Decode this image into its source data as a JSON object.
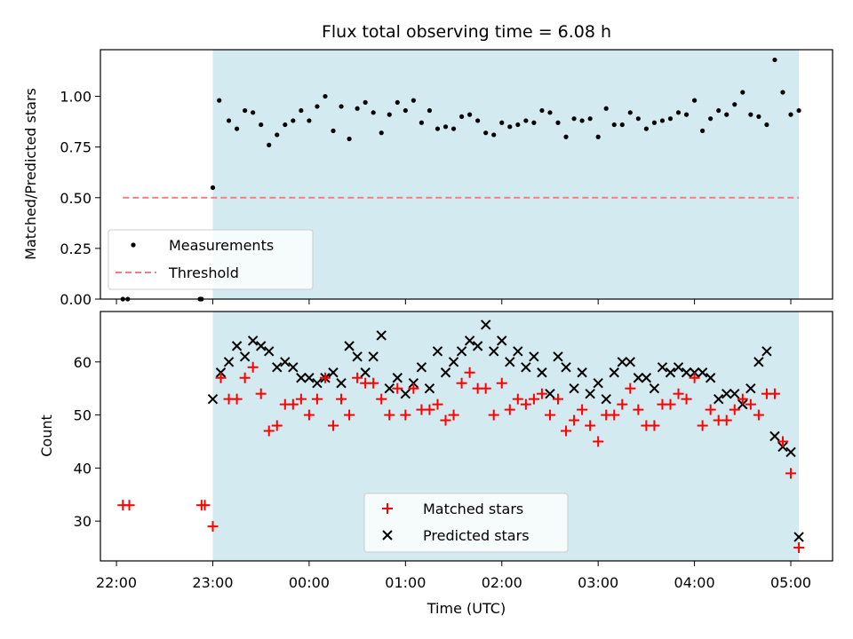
{
  "chart_data": [
    {
      "type": "scatter",
      "title": "Flux total observing time = 6.08 h",
      "xlabel": "",
      "ylabel": "Matched/Predicted stars",
      "ylim": [
        0,
        1.23
      ],
      "xlim": [
        "21:50",
        "05:26"
      ],
      "yticks": [
        "0.00",
        "0.25",
        "0.50",
        "0.75",
        "1.00"
      ],
      "ytick_values": [
        0,
        0.25,
        0.5,
        0.75,
        1.0
      ],
      "shaded_region": {
        "start": "23:00",
        "end": "05:05",
        "color": "#d3eaf1"
      },
      "threshold": {
        "name": "Threshold",
        "value": 0.5,
        "start": "22:04",
        "end": "05:05",
        "color": "#f08080"
      },
      "legend": {
        "position": "lower-left",
        "entries": [
          "Measurements",
          "Threshold"
        ]
      },
      "series": [
        {
          "name": "Measurements",
          "color": "#000000",
          "x": [
            "22:04",
            "22:07",
            "22:52",
            "22:53",
            "23:00",
            "23:04",
            "23:10",
            "23:15",
            "23:20",
            "23:25",
            "23:30",
            "23:35",
            "23:40",
            "23:45",
            "23:50",
            "23:55",
            "00:00",
            "00:05",
            "00:10",
            "00:15",
            "00:20",
            "00:25",
            "00:30",
            "00:35",
            "00:40",
            "00:45",
            "00:50",
            "00:55",
            "01:00",
            "01:05",
            "01:10",
            "01:15",
            "01:20",
            "01:25",
            "01:30",
            "01:35",
            "01:40",
            "01:45",
            "01:50",
            "01:55",
            "02:00",
            "02:05",
            "02:10",
            "02:15",
            "02:20",
            "02:25",
            "02:30",
            "02:35",
            "02:40",
            "02:45",
            "02:50",
            "02:55",
            "03:00",
            "03:05",
            "03:10",
            "03:15",
            "03:20",
            "03:25",
            "03:30",
            "03:35",
            "03:40",
            "03:45",
            "03:50",
            "03:55",
            "04:00",
            "04:05",
            "04:10",
            "04:15",
            "04:20",
            "04:25",
            "04:30",
            "04:35",
            "04:40",
            "04:45",
            "04:50",
            "04:55",
            "05:00",
            "05:05"
          ],
          "y": [
            0,
            0,
            0,
            0,
            0.55,
            0.98,
            0.88,
            0.84,
            0.93,
            0.92,
            0.86,
            0.76,
            0.81,
            0.86,
            0.88,
            0.93,
            0.88,
            0.95,
            1.0,
            0.83,
            0.95,
            0.79,
            0.94,
            0.97,
            0.92,
            0.82,
            0.91,
            0.97,
            0.93,
            0.98,
            0.87,
            0.93,
            0.84,
            0.85,
            0.84,
            0.9,
            0.91,
            0.88,
            0.82,
            0.81,
            0.87,
            0.85,
            0.86,
            0.88,
            0.87,
            0.93,
            0.92,
            0.87,
            0.8,
            0.89,
            0.88,
            0.89,
            0.8,
            0.94,
            0.86,
            0.86,
            0.92,
            0.89,
            0.84,
            0.87,
            0.88,
            0.89,
            0.92,
            0.91,
            0.98,
            0.83,
            0.89,
            0.93,
            0.91,
            0.96,
            1.02,
            0.91,
            0.9,
            0.86,
            1.18,
            1.02,
            0.91,
            0.93
          ]
        }
      ]
    },
    {
      "type": "scatter",
      "title": "",
      "xlabel": "Time (UTC)",
      "ylabel": "Count",
      "ylim": [
        22.5,
        69.5
      ],
      "xlim": [
        "21:50",
        "05:26"
      ],
      "yticks": [
        "30",
        "40",
        "50",
        "60"
      ],
      "ytick_values": [
        30,
        40,
        50,
        60
      ],
      "xticks": [
        "22:00",
        "23:00",
        "00:00",
        "01:00",
        "02:00",
        "03:00",
        "04:00",
        "05:00"
      ],
      "shaded_region": {
        "start": "23:00",
        "end": "05:05",
        "color": "#d3eaf1"
      },
      "legend": {
        "position": "lower-center",
        "entries": [
          "Matched stars",
          "Predicted stars"
        ]
      },
      "series": [
        {
          "name": "Matched stars",
          "marker": "plus",
          "color": "#ff0000",
          "x": [
            "22:04",
            "22:08",
            "22:53",
            "22:55",
            "23:00",
            "23:05",
            "23:10",
            "23:15",
            "23:20",
            "23:25",
            "23:30",
            "23:35",
            "23:40",
            "23:45",
            "23:50",
            "23:55",
            "00:00",
            "00:05",
            "00:10",
            "00:15",
            "00:20",
            "00:25",
            "00:30",
            "00:35",
            "00:40",
            "00:45",
            "00:50",
            "00:55",
            "01:00",
            "01:05",
            "01:10",
            "01:15",
            "01:20",
            "01:25",
            "01:30",
            "01:35",
            "01:40",
            "01:45",
            "01:50",
            "01:55",
            "02:00",
            "02:05",
            "02:10",
            "02:15",
            "02:20",
            "02:25",
            "02:30",
            "02:35",
            "02:40",
            "02:45",
            "02:50",
            "02:55",
            "03:00",
            "03:05",
            "03:10",
            "03:15",
            "03:20",
            "03:25",
            "03:30",
            "03:35",
            "03:40",
            "03:45",
            "03:50",
            "03:55",
            "04:00",
            "04:05",
            "04:10",
            "04:15",
            "04:20",
            "04:25",
            "04:30",
            "04:35",
            "04:40",
            "04:45",
            "04:50",
            "04:55",
            "05:00",
            "05:05"
          ],
          "y": [
            33,
            33,
            33,
            33,
            29,
            57,
            53,
            53,
            57,
            59,
            54,
            47,
            48,
            52,
            52,
            53,
            50,
            53,
            57,
            48,
            53,
            50,
            57,
            56,
            56,
            53,
            50,
            55,
            50,
            55,
            51,
            51,
            52,
            49,
            50,
            56,
            58,
            55,
            55,
            50,
            56,
            51,
            53,
            52,
            53,
            54,
            50,
            53,
            47,
            49,
            51,
            48,
            45,
            50,
            50,
            52,
            55,
            51,
            48,
            48,
            52,
            52,
            54,
            53,
            57,
            48,
            51,
            49,
            49,
            51,
            53,
            52,
            50,
            54,
            54,
            45,
            39,
            25
          ]
        },
        {
          "name": "Predicted stars",
          "marker": "x",
          "color": "#000000",
          "x": [
            "23:00",
            "23:05",
            "23:10",
            "23:15",
            "23:20",
            "23:25",
            "23:30",
            "23:35",
            "23:40",
            "23:45",
            "23:50",
            "23:55",
            "00:00",
            "00:05",
            "00:10",
            "00:15",
            "00:20",
            "00:25",
            "00:30",
            "00:35",
            "00:40",
            "00:45",
            "00:50",
            "00:55",
            "01:00",
            "01:05",
            "01:10",
            "01:15",
            "01:20",
            "01:25",
            "01:30",
            "01:35",
            "01:40",
            "01:45",
            "01:50",
            "01:55",
            "02:00",
            "02:05",
            "02:10",
            "02:15",
            "02:20",
            "02:25",
            "02:30",
            "02:35",
            "02:40",
            "02:45",
            "02:50",
            "02:55",
            "03:00",
            "03:05",
            "03:10",
            "03:15",
            "03:20",
            "03:25",
            "03:30",
            "03:35",
            "03:40",
            "03:45",
            "03:50",
            "03:55",
            "04:00",
            "04:05",
            "04:10",
            "04:15",
            "04:20",
            "04:25",
            "04:30",
            "04:35",
            "04:40",
            "04:45",
            "04:50",
            "04:55",
            "05:00",
            "05:05"
          ],
          "y": [
            53,
            58,
            60,
            63,
            61,
            64,
            63,
            62,
            59,
            60,
            59,
            57,
            57,
            56,
            57,
            58,
            56,
            63,
            61,
            58,
            61,
            65,
            55,
            57,
            54,
            56,
            59,
            55,
            62,
            58,
            60,
            62,
            64,
            63,
            67,
            62,
            64,
            60,
            62,
            59,
            61,
            58,
            54,
            61,
            59,
            55,
            58,
            54,
            56,
            53,
            58,
            60,
            60,
            57,
            57,
            55,
            59,
            58,
            59,
            58,
            58,
            58,
            57,
            53,
            54,
            54,
            52,
            55,
            60,
            62,
            46,
            44,
            43,
            27
          ]
        }
      ]
    }
  ]
}
